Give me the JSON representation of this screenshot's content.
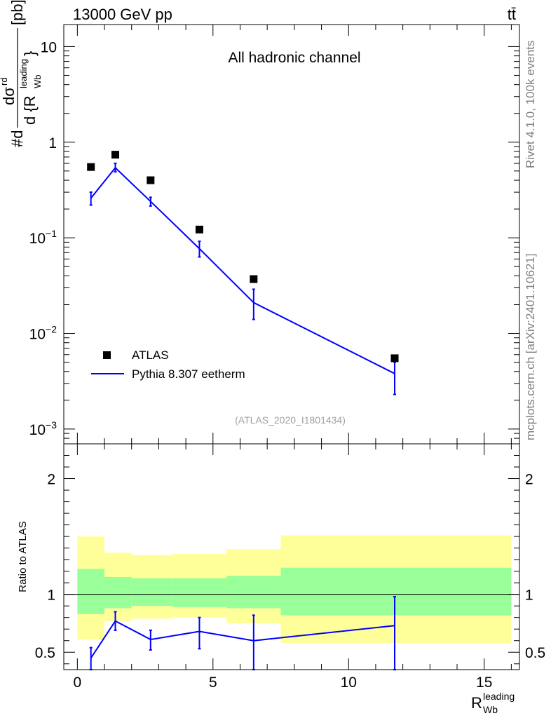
{
  "header": {
    "energy_label": "13000 GeV pp",
    "process_label": "tt̄"
  },
  "side_labels": {
    "rivet": "Rivet 4.1.0,  100k events",
    "mcplots": "mcplots.cern.ch [arXiv:2401.10621]"
  },
  "chart_data": [
    {
      "type": "scatter",
      "panel": "main",
      "title": "All hadronic channel",
      "analysis_id": "(ATLAS_2020_I1801434)",
      "ylabel": "#d dσ^{rd} / d {R_{Wb}^{leading}} [pb]",
      "yscale": "log",
      "ylim": [
        0.0007,
        17
      ],
      "xlim": [
        -0.5,
        16.3
      ],
      "ytick_labels": [
        "10",
        "1",
        "10^-1",
        "10^-2",
        "10^-3"
      ],
      "legend_position": "bottom-left",
      "series": [
        {
          "name": "ATLAS",
          "kind": "markers",
          "color": "#000000",
          "x": [
            0.5,
            1.4,
            2.7,
            4.5,
            6.5,
            11.7
          ],
          "values": [
            0.55,
            0.74,
            0.4,
            0.122,
            0.037,
            0.0055
          ]
        },
        {
          "name": "Pythia 8.307 eetherm",
          "kind": "line",
          "color": "#0000ff",
          "x": [
            0.5,
            1.4,
            2.7,
            4.5,
            6.5,
            11.7
          ],
          "values": [
            0.26,
            0.54,
            0.24,
            0.077,
            0.021,
            0.0038
          ],
          "err_low": [
            0.22,
            0.49,
            0.215,
            0.063,
            0.014,
            0.0023
          ],
          "err_high": [
            0.3,
            0.6,
            0.265,
            0.092,
            0.029,
            0.005
          ]
        }
      ]
    },
    {
      "type": "line",
      "panel": "ratio",
      "ylabel": "Ratio to ATLAS",
      "xlabel": "R_Wb^leading",
      "xlabel_main": "R",
      "xlabel_sub": "Wb",
      "xlabel_sup": "leading",
      "ylim": [
        0.35,
        2.3
      ],
      "xlim": [
        -0.5,
        16.3
      ],
      "xtick_labels": [
        "0",
        "5",
        "10",
        "15"
      ],
      "ytick_labels": [
        "2",
        "1",
        "0.5"
      ],
      "bins": [
        0,
        1,
        2,
        3.5,
        5.5,
        7.5,
        16
      ],
      "band_yellow_low": [
        0.61,
        0.77,
        0.79,
        0.8,
        0.75,
        0.58
      ],
      "band_yellow_high": [
        1.5,
        1.36,
        1.34,
        1.35,
        1.39,
        1.51
      ],
      "band_green_low": [
        0.83,
        0.88,
        0.9,
        0.89,
        0.88,
        0.82
      ],
      "band_green_high": [
        1.22,
        1.15,
        1.14,
        1.14,
        1.16,
        1.23
      ],
      "reference": 1.0,
      "series": [
        {
          "name": "Pythia 8.307 eetherm",
          "color": "#0000ff",
          "x": [
            0.5,
            1.4,
            2.7,
            4.5,
            6.5,
            11.7
          ],
          "values": [
            0.45,
            0.77,
            0.61,
            0.68,
            0.6,
            0.73
          ],
          "err_low": [
            0.35,
            0.69,
            0.52,
            0.53,
            0.35,
            0.35
          ],
          "err_high": [
            0.54,
            0.85,
            0.69,
            0.8,
            0.82,
            0.98
          ]
        }
      ]
    }
  ]
}
